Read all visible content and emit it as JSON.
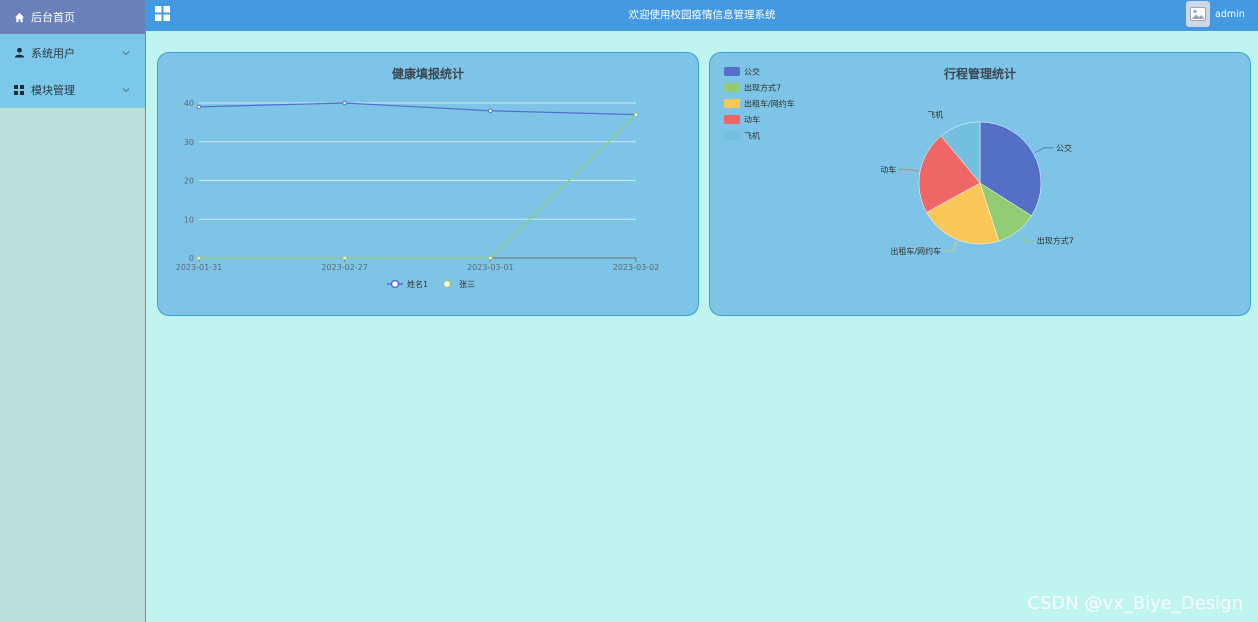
{
  "sidebar": {
    "items": [
      {
        "label": "后台首页",
        "icon": "home-icon"
      },
      {
        "label": "系统用户",
        "icon": "user-icon"
      },
      {
        "label": "模块管理",
        "icon": "grid-icon"
      }
    ]
  },
  "header": {
    "title": "欢迎使用校园疫情信息管理系统",
    "username": "admin"
  },
  "health_chart": {
    "title": "健康填报统计"
  },
  "trip_chart": {
    "title": "行程管理统计"
  },
  "watermark": "CSDN @vx_Biye_Design",
  "colors": {
    "header": "#4499e0",
    "sidebar_active": "#6a80b8",
    "series_blue": "#5470c6",
    "series_green": "#91cc75"
  },
  "chart_data": [
    {
      "type": "line",
      "title": "健康填报统计",
      "x": [
        "2023-01-31",
        "2023-02-27",
        "2023-03-01",
        "2023-03-02"
      ],
      "yticks": [
        "0",
        "10",
        "20",
        "30",
        "40"
      ],
      "ylim": [
        0,
        40
      ],
      "series": [
        {
          "name": "姓名1",
          "values": [
            39,
            40,
            38,
            37
          ]
        },
        {
          "name": "张三",
          "values": [
            0,
            0,
            0,
            37
          ]
        }
      ],
      "legend": "bottom",
      "grid": true
    },
    {
      "type": "pie",
      "title": "行程管理统计",
      "slices": [
        {
          "label": "公交",
          "value": 34
        },
        {
          "label": "出现方式7",
          "value": 11
        },
        {
          "label": "出租车/网约车",
          "value": 22
        },
        {
          "label": "动车",
          "value": 22
        },
        {
          "label": "飞机",
          "value": 11
        }
      ],
      "colors": [
        "#5470c6",
        "#91cc75",
        "#fac858",
        "#ee6666",
        "#73c0de"
      ],
      "legend": "top-left"
    }
  ]
}
